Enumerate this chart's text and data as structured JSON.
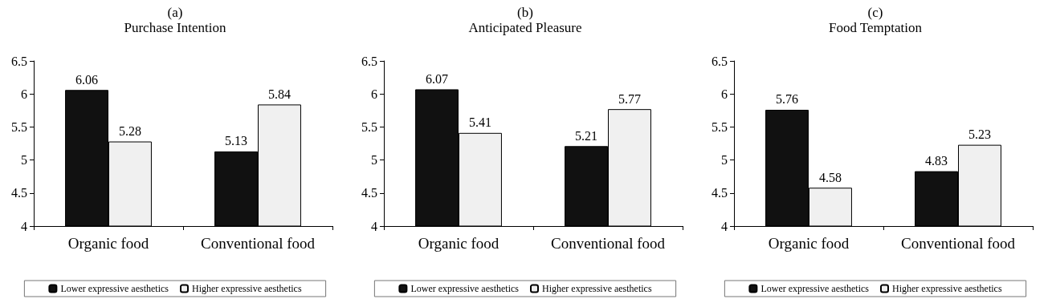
{
  "chart_data": [
    {
      "type": "bar",
      "title": "(a)",
      "subtitle": "Purchase Intention",
      "categories": [
        "Organic food",
        "Conventional food"
      ],
      "series": [
        {
          "name": "Lower expressive aesthetics",
          "color": "#111111",
          "values": [
            6.06,
            5.13
          ]
        },
        {
          "name": "Higher expressive aesthetics",
          "color": "#f0f0f0",
          "values": [
            5.28,
            5.84
          ]
        }
      ],
      "ylim": [
        4,
        6.5
      ],
      "yticks": [
        4,
        4.5,
        5,
        5.5,
        6,
        6.5
      ],
      "grid": false,
      "legend": "bottom",
      "data_labels": true
    },
    {
      "type": "bar",
      "title": "(b)",
      "subtitle": "Anticipated Pleasure",
      "categories": [
        "Organic food",
        "Conventional food"
      ],
      "series": [
        {
          "name": "Lower expressive aesthetics",
          "color": "#111111",
          "values": [
            6.07,
            5.21
          ]
        },
        {
          "name": "Higher expressive aesthetics",
          "color": "#f0f0f0",
          "values": [
            5.41,
            5.77
          ]
        }
      ],
      "ylim": [
        4,
        6.5
      ],
      "yticks": [
        4,
        4.5,
        5,
        5.5,
        6,
        6.5
      ],
      "grid": false,
      "legend": "bottom",
      "data_labels": true
    },
    {
      "type": "bar",
      "title": "(c)",
      "subtitle": "Food Temptation",
      "categories": [
        "Organic food",
        "Conventional food"
      ],
      "series": [
        {
          "name": "Lower expressive aesthetics",
          "color": "#111111",
          "values": [
            5.76,
            4.83
          ]
        },
        {
          "name": "Higher expressive aesthetics",
          "color": "#f0f0f0",
          "values": [
            4.58,
            5.23
          ]
        }
      ],
      "ylim": [
        4,
        6.5
      ],
      "yticks": [
        4,
        4.5,
        5,
        5.5,
        6,
        6.5
      ],
      "grid": false,
      "legend": "bottom",
      "data_labels": true
    }
  ]
}
